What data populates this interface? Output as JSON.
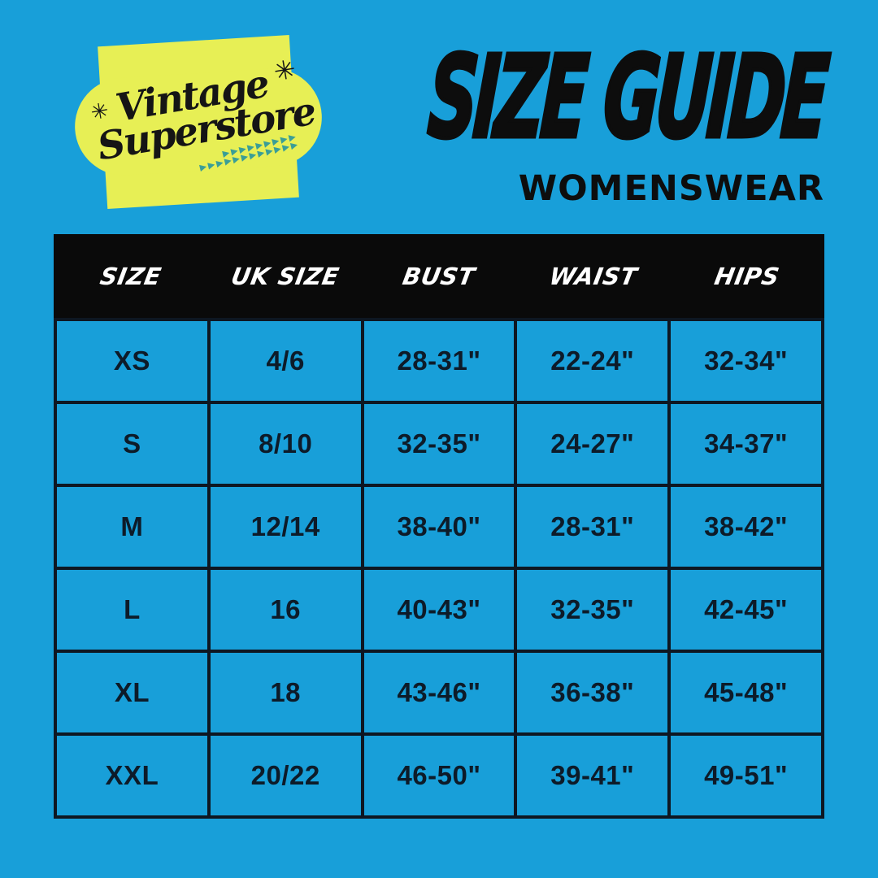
{
  "page": {
    "background_color": "#189fd9",
    "ink_color": "#0d0d0d"
  },
  "logo": {
    "line1": "Vintage",
    "line2": "Superstore",
    "sparkle": "✳",
    "arrows_row1": "▶▶▶▶▶▶▶▶▶",
    "arrows_row2": "▶▶▶▶▶▶▶▶▶▶▶▶",
    "badge_color": "#e7ef55",
    "arrow_color": "#3a9e96"
  },
  "header": {
    "title": "SIZE GUIDE",
    "subtitle": "WOMENSWEAR"
  },
  "chart_data": {
    "type": "table",
    "title": "SIZE GUIDE",
    "subtitle": "WOMENSWEAR",
    "columns": [
      "SIZE",
      "UK SIZE",
      "BUST",
      "WAIST",
      "HIPS"
    ],
    "rows": [
      [
        "XS",
        "4/6",
        "28-31\"",
        "22-24\"",
        "32-34\""
      ],
      [
        "S",
        "8/10",
        "32-35\"",
        "24-27\"",
        "34-37\""
      ],
      [
        "M",
        "12/14",
        "38-40\"",
        "28-31\"",
        "38-42\""
      ],
      [
        "L",
        "16",
        "40-43\"",
        "32-35\"",
        "42-45\""
      ],
      [
        "XL",
        "18",
        "43-46\"",
        "36-38\"",
        "45-48\""
      ],
      [
        "XXL",
        "20/22",
        "46-50\"",
        "39-41\"",
        "49-51\""
      ]
    ],
    "header_style": {
      "background": "#0a0a0a",
      "text": "#ffffff"
    },
    "grid": true,
    "grid_color": "#0e1722"
  }
}
